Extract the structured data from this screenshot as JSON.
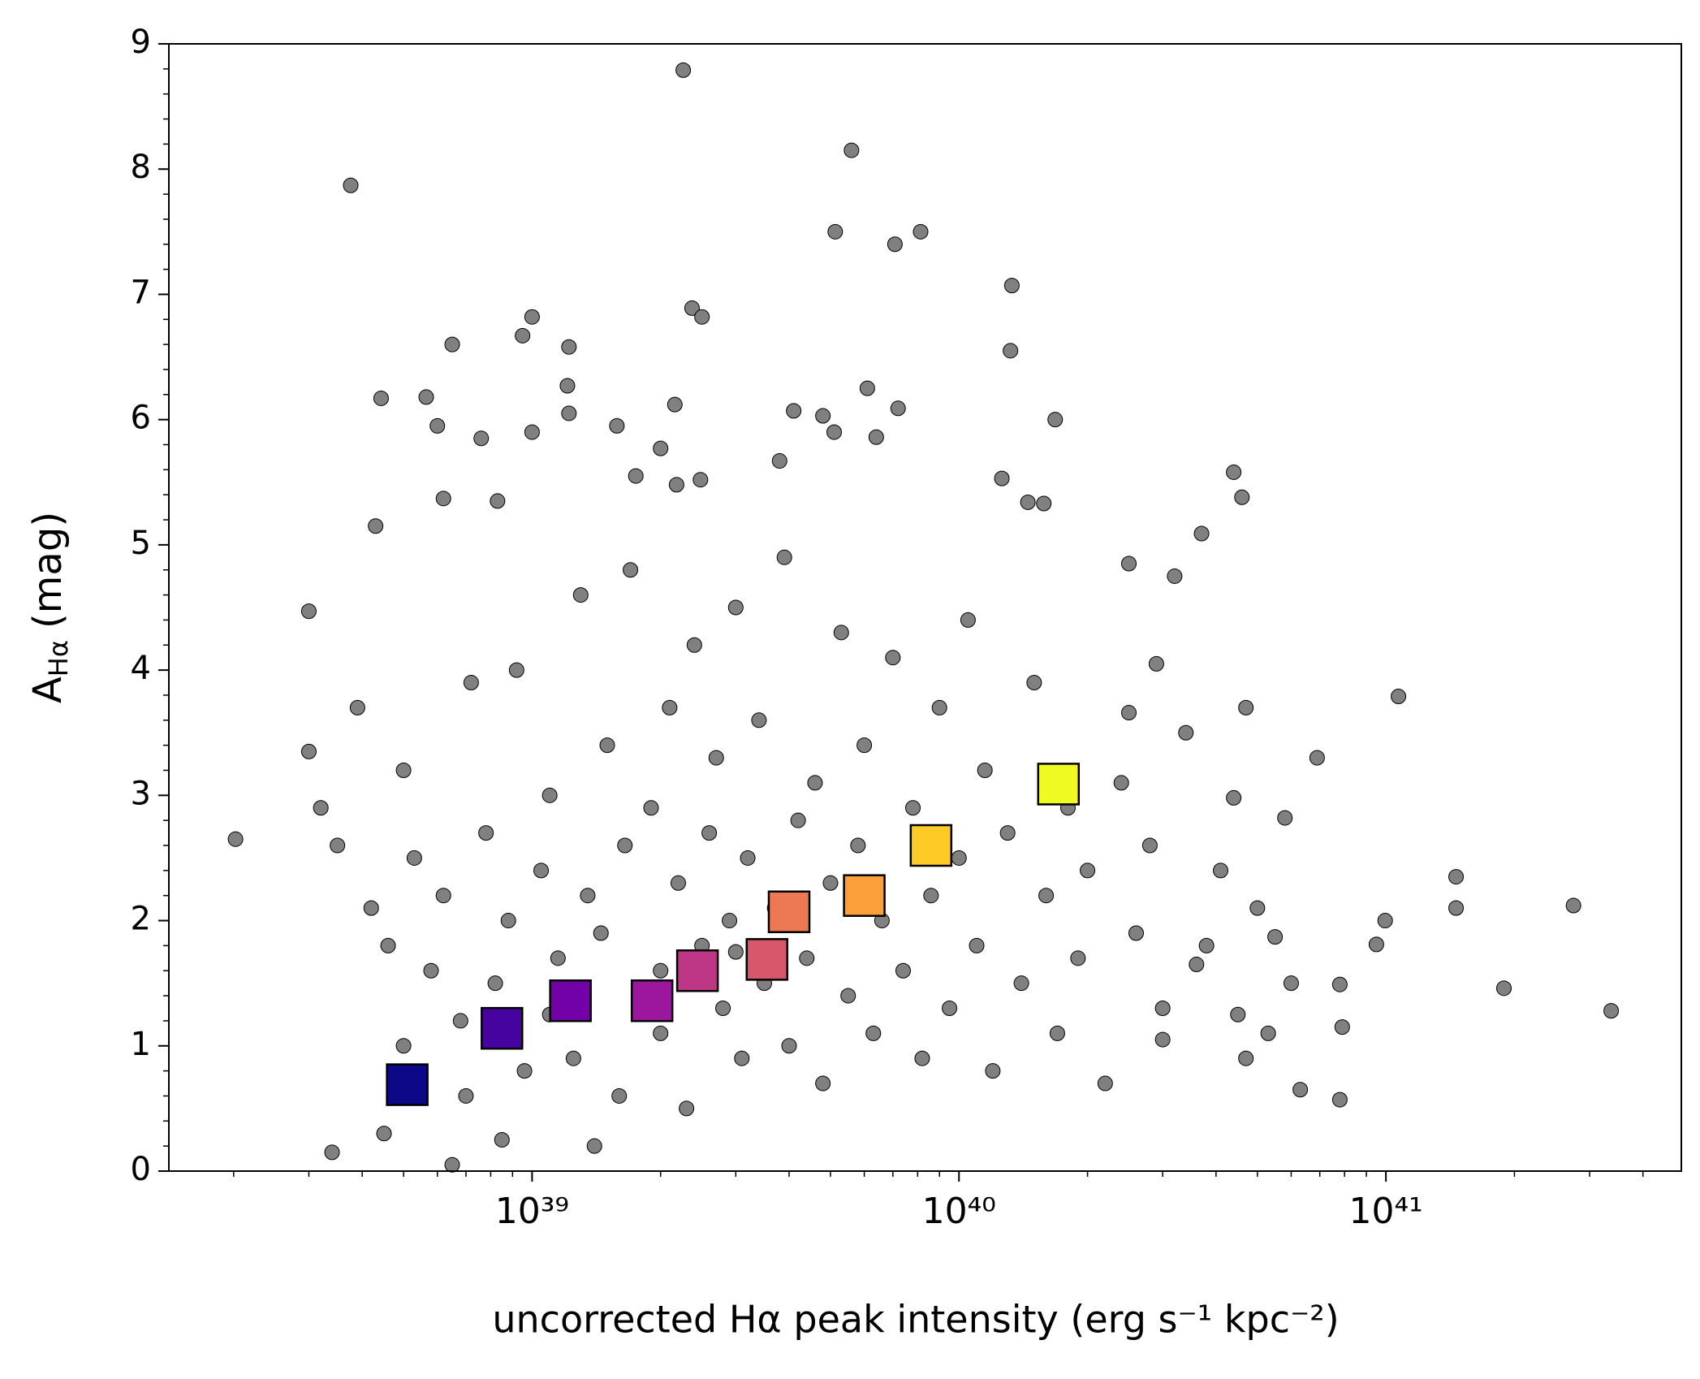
{
  "chart_data": {
    "type": "scatter",
    "xlabel": "uncorrected Hα peak intensity (erg s⁻¹ kpc⁻²)",
    "ylabel": {
      "main": "A",
      "sub": "Hα",
      "unit": "(mag)"
    },
    "xscale": "log",
    "xlim": [
      1.41e+38,
      4.92e+41
    ],
    "ylim": [
      0,
      9
    ],
    "xticks": [
      {
        "value": 1e+39,
        "label": "10³⁹"
      },
      {
        "value": 1e+40,
        "label": "10⁴⁰"
      },
      {
        "value": 1e+41,
        "label": "10⁴¹"
      }
    ],
    "yticks": [
      0,
      1,
      2,
      3,
      4,
      5,
      6,
      7,
      8,
      9
    ],
    "grid": false,
    "series": [
      {
        "marker": "circle",
        "color": "#808080",
        "x": [
          2.02e+38,
          3.76e+38,
          2.26e+39,
          5.6e+39,
          5.13e+39,
          7.08e+39,
          8.13e+39,
          1.33e+40,
          1.32e+40,
          2.37e+39,
          2.5e+39,
          1e+39,
          9.5e+38,
          1.22e+39,
          6.5e+38,
          4.43e+38,
          5.65e+38,
          1.68e+40,
          4.4e+40,
          4.6e+40,
          3.7e+40,
          1.07e+41,
          6.9e+40,
          1.46e+41,
          1.46e+41,
          2.75e+41,
          3.37e+41,
          1.89e+41,
          9.96e+40,
          9.5e+40,
          7.8e+40,
          6.3e+40,
          4.4e+40,
          5.8e+40,
          4.7e+40,
          3.4e+40,
          2.9e+40,
          3.2e+40,
          2.5e+40,
          2.5e+40,
          4.1e+40,
          5e+40,
          5.5e+40,
          6e+40,
          3.8e+40,
          4.5e+40,
          3e+40,
          4.7e+40,
          7.8e+40,
          7.9e+40,
          5.3e+40,
          3.6e+40,
          7.6e+38,
          6e+38,
          6.2e+38,
          4.3e+38,
          8.3e+38,
          1e+39,
          1.21e+39,
          1.22e+39,
          1.58e+39,
          2e+39,
          2.16e+39,
          1.75e+39,
          2.18e+39,
          2.48e+39,
          3.8e+39,
          4.1e+39,
          4.8e+39,
          6.1e+39,
          7.2e+39,
          6.4e+39,
          5.1e+39,
          1.26e+40,
          1.45e+40,
          1.58e+40,
          3e+38,
          3e+38,
          3.2e+38,
          3.5e+38,
          3.9e+38,
          4.2e+38,
          4.6e+38,
          5e+38,
          5.3e+38,
          5.8e+38,
          6.2e+38,
          6.8e+38,
          7.2e+38,
          7.8e+38,
          8.2e+38,
          8.8e+38,
          9.2e+38,
          9.6e+38,
          1.05e+39,
          1.1e+39,
          1.15e+39,
          1.25e+39,
          1.3e+39,
          1.35e+39,
          1.45e+39,
          1.5e+39,
          1.6e+39,
          1.65e+39,
          1.7e+39,
          1.8e+39,
          1.9e+39,
          2e+39,
          2.1e+39,
          2.2e+39,
          2.3e+39,
          2.4e+39,
          2.5e+39,
          2.6e+39,
          2.7e+39,
          2.8e+39,
          2.9e+39,
          3e+39,
          3.1e+39,
          3.2e+39,
          3.4e+39,
          3.5e+39,
          3.7e+39,
          3.9e+39,
          4e+39,
          4.2e+39,
          4.4e+39,
          4.6e+39,
          4.8e+39,
          5e+39,
          5.3e+39,
          5.5e+39,
          5.8e+39,
          6e+39,
          6.3e+39,
          6.6e+39,
          7e+39,
          7.4e+39,
          7.8e+39,
          8.2e+39,
          8.6e+39,
          9e+39,
          9.5e+39,
          1e+40,
          1.05e+40,
          1.1e+40,
          1.15e+40,
          1.2e+40,
          1.3e+40,
          1.4e+40,
          1.5e+40,
          1.6e+40,
          1.7e+40,
          1.8e+40,
          1.9e+40,
          2e+40,
          2.2e+40,
          2.4e+40,
          2.6e+40,
          2.8e+40,
          3e+40,
          4.5e+38,
          6.5e+38,
          8.5e+38,
          3.4e+38,
          1.4e+39,
          1.1e+39,
          2e+39,
          3e+39,
          5e+38,
          7e+38
        ],
        "values": [
          2.65,
          7.87,
          8.79,
          8.15,
          7.5,
          7.4,
          7.5,
          7.07,
          6.55,
          6.89,
          6.82,
          6.82,
          6.67,
          6.58,
          6.6,
          6.17,
          6.18,
          6.0,
          5.58,
          5.38,
          5.09,
          3.79,
          3.3,
          2.35,
          2.1,
          2.12,
          1.28,
          1.46,
          2.0,
          1.81,
          0.57,
          0.65,
          2.98,
          2.82,
          3.7,
          3.5,
          4.05,
          4.75,
          4.85,
          3.66,
          2.4,
          2.1,
          1.87,
          1.5,
          1.8,
          1.25,
          1.05,
          0.9,
          1.49,
          1.15,
          1.1,
          1.65,
          5.85,
          5.95,
          5.37,
          5.15,
          5.35,
          5.9,
          6.27,
          6.05,
          5.95,
          5.77,
          6.12,
          5.55,
          5.48,
          5.52,
          5.67,
          6.07,
          6.03,
          6.25,
          6.09,
          5.86,
          5.9,
          5.53,
          5.34,
          5.33,
          4.47,
          3.35,
          2.9,
          2.6,
          3.7,
          2.1,
          1.8,
          3.2,
          2.5,
          1.6,
          2.2,
          1.2,
          3.9,
          2.7,
          1.5,
          2.0,
          4.0,
          0.8,
          2.4,
          3.0,
          1.7,
          0.9,
          4.6,
          2.2,
          1.9,
          3.4,
          0.6,
          2.6,
          4.8,
          1.4,
          2.9,
          1.1,
          3.7,
          2.3,
          0.5,
          4.2,
          1.8,
          2.7,
          3.3,
          1.3,
          2.0,
          4.5,
          0.9,
          2.5,
          3.6,
          1.5,
          2.1,
          4.9,
          1.0,
          2.8,
          1.7,
          3.1,
          0.7,
          2.3,
          4.3,
          1.4,
          2.6,
          3.4,
          1.1,
          2.0,
          4.1,
          1.6,
          2.9,
          0.9,
          2.2,
          3.7,
          1.3,
          2.5,
          4.4,
          1.8,
          3.2,
          0.8,
          2.7,
          1.5,
          3.9,
          2.2,
          1.1,
          2.9,
          1.7,
          2.4,
          0.7,
          3.1,
          1.9,
          2.6,
          1.3,
          0.3,
          0.05,
          0.25,
          0.15,
          0.2,
          1.25,
          1.6,
          1.75,
          1.0,
          0.6
        ]
      },
      {
        "marker": "square",
        "colors": [
          "#0d0887",
          "#46039f",
          "#7201a8",
          "#9c179e",
          "#bd3786",
          "#d8576b",
          "#ed7953",
          "#fb9f3a",
          "#fdca26",
          "#f0f921"
        ],
        "x": [
          5.1e+38,
          8.5e+38,
          1.23e+39,
          1.91e+39,
          2.44e+39,
          3.55e+39,
          4e+39,
          6e+39,
          8.6e+39,
          1.71e+40
        ],
        "values": [
          0.69,
          1.14,
          1.36,
          1.36,
          1.6,
          1.69,
          2.07,
          2.2,
          2.6,
          3.09
        ]
      }
    ]
  }
}
